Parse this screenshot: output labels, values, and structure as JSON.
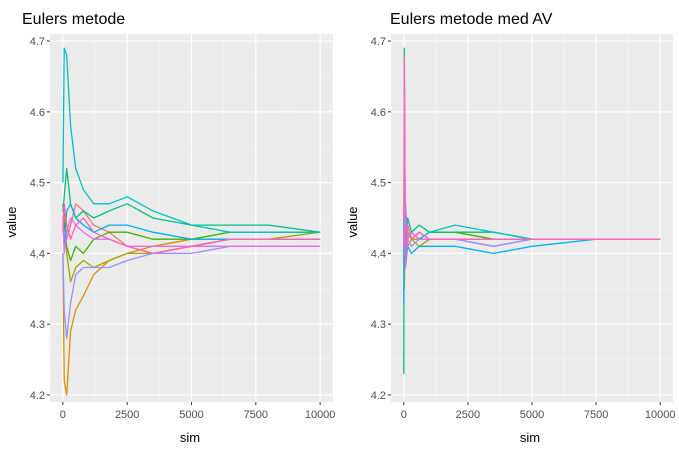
{
  "chart_data": [
    {
      "type": "line",
      "title": "Eulers metode",
      "xlabel": "sim",
      "ylabel": "value",
      "xlim": [
        0,
        10000
      ],
      "ylim": [
        4.19,
        4.71
      ],
      "x_ticks": [
        0,
        2500,
        5000,
        7500,
        10000
      ],
      "x_tick_labels": [
        "0",
        "2500",
        "5000",
        "7500",
        "10000"
      ],
      "y_ticks": [
        4.2,
        4.3,
        4.4,
        4.5,
        4.6,
        4.7
      ],
      "y_tick_labels": [
        "4.2",
        "4.3",
        "4.4",
        "4.5",
        "4.6",
        "4.7"
      ],
      "grid": true,
      "legend": "none",
      "series": [
        {
          "color": "#F8766D",
          "x": [
            1,
            50,
            150,
            300,
            500,
            800,
            1200,
            1800,
            2500,
            3500,
            5000,
            6500,
            8000,
            10000
          ],
          "y": [
            4.45,
            4.46,
            4.42,
            4.44,
            4.47,
            4.46,
            4.44,
            4.43,
            4.41,
            4.4,
            4.41,
            4.42,
            4.42,
            4.42
          ]
        },
        {
          "color": "#D89000",
          "x": [
            1,
            50,
            150,
            300,
            500,
            800,
            1200,
            1800,
            2500,
            3500,
            5000,
            6500,
            8000,
            10000
          ],
          "y": [
            4.4,
            4.22,
            4.2,
            4.29,
            4.32,
            4.34,
            4.37,
            4.39,
            4.4,
            4.41,
            4.42,
            4.42,
            4.42,
            4.42
          ]
        },
        {
          "color": "#A3A500",
          "x": [
            1,
            50,
            150,
            300,
            500,
            800,
            1200,
            1800,
            2500,
            3500,
            5000,
            6500,
            8000,
            10000
          ],
          "y": [
            4.43,
            4.46,
            4.4,
            4.36,
            4.38,
            4.39,
            4.38,
            4.39,
            4.4,
            4.4,
            4.41,
            4.42,
            4.42,
            4.43
          ]
        },
        {
          "color": "#39B600",
          "x": [
            1,
            50,
            150,
            300,
            500,
            800,
            1200,
            1800,
            2500,
            3500,
            5000,
            6500,
            8000,
            10000
          ],
          "y": [
            4.47,
            4.44,
            4.41,
            4.39,
            4.41,
            4.4,
            4.42,
            4.43,
            4.43,
            4.42,
            4.42,
            4.43,
            4.43,
            4.43
          ]
        },
        {
          "color": "#00BF7D",
          "x": [
            1,
            50,
            150,
            300,
            500,
            800,
            1200,
            1800,
            2500,
            3500,
            5000,
            6500,
            8000,
            10000
          ],
          "y": [
            4.46,
            4.48,
            4.52,
            4.47,
            4.45,
            4.46,
            4.45,
            4.46,
            4.47,
            4.45,
            4.44,
            4.44,
            4.44,
            4.43
          ]
        },
        {
          "color": "#00BFC4",
          "x": [
            1,
            50,
            150,
            300,
            500,
            800,
            1200,
            1800,
            2500,
            3500,
            5000,
            6500,
            8000,
            10000
          ],
          "y": [
            4.5,
            4.69,
            4.68,
            4.58,
            4.52,
            4.49,
            4.47,
            4.47,
            4.48,
            4.46,
            4.44,
            4.43,
            4.43,
            4.43
          ]
        },
        {
          "color": "#00B0F6",
          "x": [
            1,
            50,
            150,
            300,
            500,
            800,
            1200,
            1800,
            2500,
            3500,
            5000,
            6500,
            8000,
            10000
          ],
          "y": [
            4.44,
            4.41,
            4.46,
            4.47,
            4.45,
            4.44,
            4.43,
            4.44,
            4.44,
            4.43,
            4.42,
            4.42,
            4.42,
            4.42
          ]
        },
        {
          "color": "#9590FF",
          "x": [
            1,
            50,
            150,
            300,
            500,
            800,
            1200,
            1800,
            2500,
            3500,
            5000,
            6500,
            8000,
            10000
          ],
          "y": [
            4.4,
            4.32,
            4.28,
            4.33,
            4.37,
            4.38,
            4.38,
            4.38,
            4.39,
            4.4,
            4.4,
            4.41,
            4.41,
            4.41
          ]
        },
        {
          "color": "#E76BF3",
          "x": [
            1,
            50,
            150,
            300,
            500,
            800,
            1200,
            1800,
            2500,
            3500,
            5000,
            6500,
            8000,
            10000
          ],
          "y": [
            4.45,
            4.4,
            4.43,
            4.45,
            4.44,
            4.43,
            4.42,
            4.42,
            4.41,
            4.41,
            4.41,
            4.41,
            4.41,
            4.41
          ]
        },
        {
          "color": "#FF62BC",
          "x": [
            1,
            50,
            150,
            300,
            500,
            800,
            1200,
            1800,
            2500,
            3500,
            5000,
            6500,
            8000,
            10000
          ],
          "y": [
            4.43,
            4.47,
            4.44,
            4.42,
            4.44,
            4.45,
            4.43,
            4.42,
            4.41,
            4.4,
            4.41,
            4.42,
            4.42,
            4.42
          ]
        }
      ]
    },
    {
      "type": "line",
      "title": "Eulers metode med AV",
      "xlabel": "sim",
      "ylabel": "value",
      "xlim": [
        0,
        10000
      ],
      "ylim": [
        4.19,
        4.71
      ],
      "x_ticks": [
        0,
        2500,
        5000,
        7500,
        10000
      ],
      "x_tick_labels": [
        "0",
        "2500",
        "5000",
        "7500",
        "10000"
      ],
      "y_ticks": [
        4.2,
        4.3,
        4.4,
        4.5,
        4.6,
        4.7
      ],
      "y_tick_labels": [
        "4.2",
        "4.3",
        "4.4",
        "4.5",
        "4.6",
        "4.7"
      ],
      "grid": true,
      "legend": "none",
      "series": [
        {
          "color": "#F8766D",
          "x": [
            1,
            20,
            60,
            150,
            300,
            600,
            1000,
            2000,
            3500,
            5000,
            7500,
            10000
          ],
          "y": [
            4.42,
            4.52,
            4.4,
            4.44,
            4.42,
            4.43,
            4.42,
            4.42,
            4.41,
            4.42,
            4.42,
            4.42
          ]
        },
        {
          "color": "#D89000",
          "x": [
            1,
            20,
            60,
            150,
            300,
            600,
            1000,
            2000,
            3500,
            5000,
            7500,
            10000
          ],
          "y": [
            4.4,
            4.35,
            4.44,
            4.41,
            4.42,
            4.42,
            4.42,
            4.42,
            4.42,
            4.42,
            4.42,
            4.42
          ]
        },
        {
          "color": "#A3A500",
          "x": [
            1,
            20,
            60,
            150,
            300,
            600,
            1000,
            2000,
            3500,
            5000,
            7500,
            10000
          ],
          "y": [
            4.43,
            4.48,
            4.4,
            4.43,
            4.42,
            4.41,
            4.42,
            4.42,
            4.42,
            4.42,
            4.42,
            4.42
          ]
        },
        {
          "color": "#39B600",
          "x": [
            1,
            20,
            60,
            150,
            300,
            600,
            1000,
            2000,
            3500,
            5000,
            7500,
            10000
          ],
          "y": [
            4.44,
            4.38,
            4.46,
            4.42,
            4.43,
            4.42,
            4.43,
            4.43,
            4.42,
            4.42,
            4.42,
            4.42
          ]
        },
        {
          "color": "#00BF7D",
          "x": [
            1,
            20,
            60,
            150,
            300,
            600,
            1000,
            2000,
            3500,
            5000,
            7500,
            10000
          ],
          "y": [
            4.23,
            4.69,
            4.4,
            4.45,
            4.43,
            4.44,
            4.43,
            4.43,
            4.43,
            4.42,
            4.42,
            4.42
          ]
        },
        {
          "color": "#00BFC4",
          "x": [
            1,
            20,
            60,
            150,
            300,
            600,
            1000,
            2000,
            3500,
            5000,
            7500,
            10000
          ],
          "y": [
            4.45,
            4.38,
            4.47,
            4.42,
            4.43,
            4.42,
            4.43,
            4.44,
            4.43,
            4.42,
            4.42,
            4.42
          ]
        },
        {
          "color": "#00B0F6",
          "x": [
            1,
            20,
            60,
            150,
            300,
            600,
            1000,
            2000,
            3500,
            5000,
            7500,
            10000
          ],
          "y": [
            4.33,
            4.49,
            4.38,
            4.41,
            4.4,
            4.41,
            4.41,
            4.41,
            4.4,
            4.41,
            4.42,
            4.42
          ]
        },
        {
          "color": "#9590FF",
          "x": [
            1,
            20,
            60,
            150,
            300,
            600,
            1000,
            2000,
            3500,
            5000,
            7500,
            10000
          ],
          "y": [
            4.41,
            4.45,
            4.39,
            4.42,
            4.41,
            4.42,
            4.42,
            4.42,
            4.41,
            4.42,
            4.42,
            4.42
          ]
        },
        {
          "color": "#E76BF3",
          "x": [
            1,
            20,
            60,
            150,
            300,
            600,
            1000,
            2000,
            3500,
            5000,
            7500,
            10000
          ],
          "y": [
            4.43,
            4.41,
            4.46,
            4.42,
            4.43,
            4.42,
            4.42,
            4.42,
            4.42,
            4.42,
            4.42,
            4.42
          ]
        },
        {
          "color": "#FF62BC",
          "x": [
            1,
            20,
            60,
            150,
            300,
            600,
            1000,
            2000,
            3500,
            5000,
            7500,
            10000
          ],
          "y": [
            4.45,
            4.68,
            4.38,
            4.44,
            4.42,
            4.43,
            4.42,
            4.42,
            4.42,
            4.42,
            4.42,
            4.42
          ]
        }
      ]
    }
  ]
}
